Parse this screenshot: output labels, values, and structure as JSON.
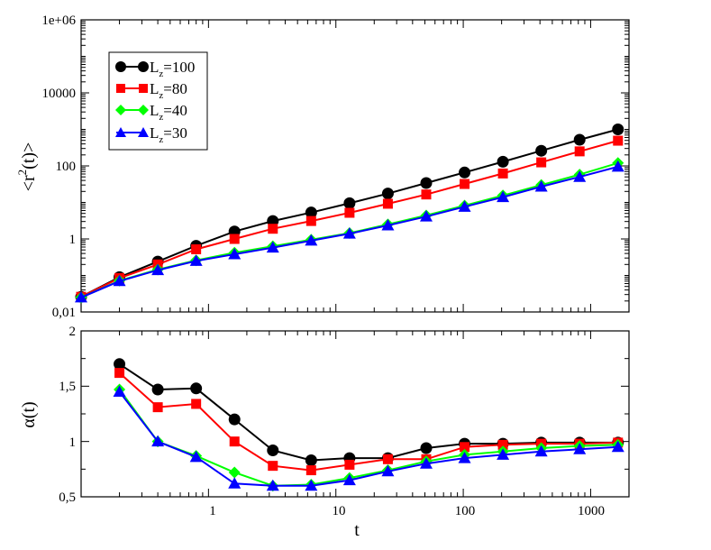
{
  "chart_data": [
    {
      "type": "line",
      "panel": "top",
      "ylabel": "<r^2(t)>",
      "ylabel_parts": {
        "open": "<r",
        "sup": "2",
        "close": "(t)>"
      },
      "xlabel": "",
      "xscale": "log",
      "yscale": "log",
      "xlim": [
        0.1,
        2000
      ],
      "ylim": [
        0.01,
        1000000
      ],
      "yticks": [
        0.01,
        1,
        100,
        10000,
        1000000
      ],
      "ytick_labels": [
        "0,01",
        "1",
        "100",
        "10000",
        "1e+06"
      ],
      "xticks": [
        1,
        10,
        100,
        1000
      ],
      "xtick_labels": [
        "",
        "",
        "",
        ""
      ],
      "legend": {
        "position": "top-left",
        "entries": [
          {
            "base": "L",
            "sub": "z",
            "rest": "=100"
          },
          {
            "base": "L",
            "sub": "z",
            "rest": "=80"
          },
          {
            "base": "L",
            "sub": "z",
            "rest": "=40"
          },
          {
            "base": "L",
            "sub": "z",
            "rest": "=30"
          }
        ]
      },
      "x": [
        0.1,
        0.2,
        0.4,
        0.8,
        1.6,
        3.2,
        6.4,
        12.8,
        25.6,
        51.2,
        102.4,
        204.8,
        409.6,
        819.2,
        1638.4
      ],
      "series": [
        {
          "name": "Lz=100",
          "color": "#000000",
          "marker": "circle",
          "values": [
            0.026,
            0.09,
            0.24,
            0.65,
            1.6,
            3.1,
            5.3,
            9.5,
            17.5,
            34,
            66,
            130,
            260,
            520,
            1000
          ]
        },
        {
          "name": "Lz=80",
          "color": "#ff0000",
          "marker": "square",
          "values": [
            0.026,
            0.085,
            0.2,
            0.52,
            1.0,
            1.9,
            3.1,
            5.2,
            9.2,
            16.5,
            32,
            62,
            125,
            250,
            490
          ]
        },
        {
          "name": "Lz=40",
          "color": "#00ff00",
          "marker": "diamond",
          "values": [
            0.025,
            0.072,
            0.145,
            0.26,
            0.42,
            0.63,
            0.95,
            1.45,
            2.5,
            4.4,
            8.2,
            15.5,
            30,
            58,
            120
          ]
        },
        {
          "name": "Lz=30",
          "color": "#0000ff",
          "marker": "triangle",
          "values": [
            0.025,
            0.07,
            0.14,
            0.25,
            0.38,
            0.58,
            0.9,
            1.4,
            2.35,
            4.1,
            7.6,
            14,
            27,
            50,
            95
          ]
        }
      ]
    },
    {
      "type": "line",
      "panel": "bottom",
      "ylabel": "α(t)",
      "xlabel": "t",
      "xscale": "log",
      "yscale": "linear",
      "xlim": [
        0.1,
        2000
      ],
      "ylim": [
        0.5,
        2
      ],
      "yticks": [
        0.5,
        1,
        1.5,
        2
      ],
      "ytick_labels": [
        "0,5",
        "1",
        "1,5",
        "2"
      ],
      "xticks": [
        1,
        10,
        100,
        1000
      ],
      "xtick_labels": [
        "1",
        "10",
        "100",
        "1000"
      ],
      "x": [
        0.2,
        0.4,
        0.8,
        1.6,
        3.2,
        6.4,
        12.8,
        25.6,
        51.2,
        102.4,
        204.8,
        409.6,
        819.2,
        1638.4
      ],
      "series": [
        {
          "name": "Lz=100",
          "color": "#000000",
          "marker": "circle",
          "values": [
            1.7,
            1.47,
            1.48,
            1.2,
            0.92,
            0.83,
            0.85,
            0.85,
            0.94,
            0.98,
            0.98,
            0.99,
            0.99,
            0.99
          ]
        },
        {
          "name": "Lz=80",
          "color": "#ff0000",
          "marker": "square",
          "values": [
            1.62,
            1.31,
            1.34,
            1.0,
            0.78,
            0.74,
            0.79,
            0.84,
            0.84,
            0.95,
            0.97,
            0.98,
            0.98,
            0.99
          ]
        },
        {
          "name": "Lz=40",
          "color": "#00ff00",
          "marker": "diamond",
          "values": [
            1.47,
            1.0,
            0.87,
            0.72,
            0.6,
            0.61,
            0.67,
            0.74,
            0.82,
            0.88,
            0.91,
            0.94,
            0.96,
            0.97
          ]
        },
        {
          "name": "Lz=30",
          "color": "#0000ff",
          "marker": "triangle",
          "values": [
            1.45,
            1.0,
            0.86,
            0.62,
            0.6,
            0.6,
            0.65,
            0.73,
            0.8,
            0.85,
            0.88,
            0.91,
            0.93,
            0.95
          ]
        }
      ]
    }
  ]
}
